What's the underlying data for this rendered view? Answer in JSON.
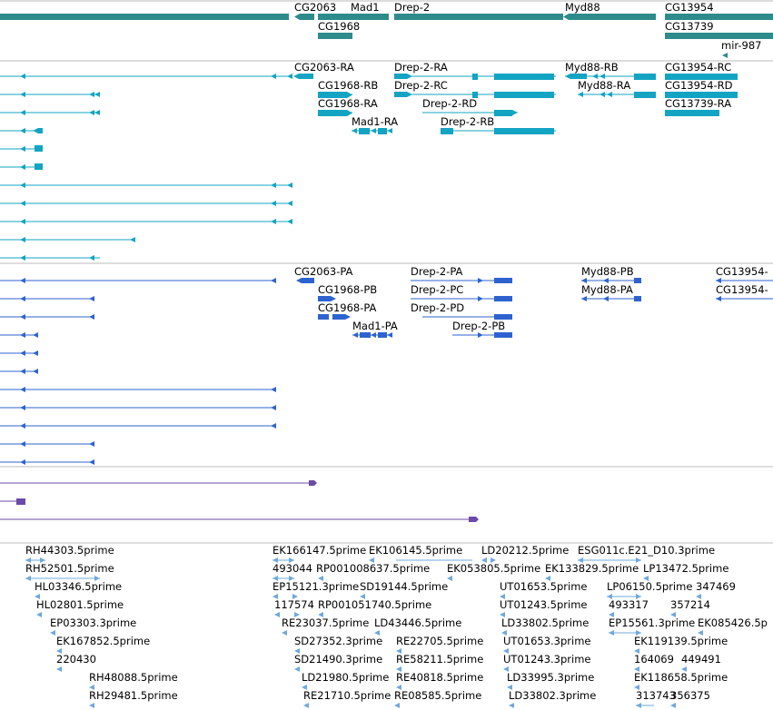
{
  "colors": {
    "gene": "#2e8b8b",
    "transcript": "#12a4c2",
    "protein": "#2e63cf",
    "other": "#6b4aa8",
    "est": "#6fa8dc",
    "divider": "#bbbbbb",
    "text": "#000000"
  },
  "genes": {
    "labels": [
      "CG2063",
      "Mad1",
      "Drep-2",
      "Myd88",
      "CG13954",
      "CG1968",
      "CG13739",
      "mir-987"
    ]
  },
  "transcripts": {
    "labels": [
      "CG2063-RA",
      "Drep-2-RA",
      "Myd88-RB",
      "CG13954-RC",
      "CG1968-RB",
      "Drep-2-RC",
      "Myd88-RA",
      "CG13954-RD",
      "CG1968-RA",
      "Drep-2-RD",
      "CG13739-RA",
      "Mad1-RA",
      "Drep-2-RB"
    ]
  },
  "proteins": {
    "labels": [
      "CG2063-PA",
      "Drep-2-PA",
      "Myd88-PB",
      "CG13954-",
      "CG1968-PB",
      "Drep-2-PC",
      "Myd88-PA",
      "CG13954-",
      "CG1968-PA",
      "Drep-2-PD",
      "Mad1-PA",
      "Drep-2-PB"
    ]
  },
  "ests": {
    "labels": [
      "RH44303.5prime",
      "RH52501.5prime",
      "HL03346.5prime",
      "HL02801.5prime",
      "EP03303.3prime",
      "EK167852.5prime",
      "220430",
      "RH48088.5prime",
      "RH29481.5prime",
      "EK166147.5prime",
      "EK106145.5prime",
      "LD20212.5prime",
      "ESG011c.E21_D10.3prime",
      "493044",
      "RP001008637.5prime",
      "EK053805.5prime",
      "EK133829.5prime",
      "LP13472.5prime",
      "EP15121.3prime",
      "SD19144.5prime",
      "UT01653.5prime",
      "LP06150.5prime",
      "347469",
      "117574",
      "RP001051740.5prime",
      "UT01243.5prime",
      "493317",
      "357214",
      "RE23037.5prime",
      "LD43446.5prime",
      "LD33802.5prime",
      "EP15561.3prime",
      "EK085426.5p",
      "SD27352.3prime",
      "RE22705.5prime",
      "UT01653.3prime",
      "EK119139.5prime",
      "SD21490.3prime",
      "RE58211.5prime",
      "UT01243.3prime",
      "164069",
      "449491",
      "LD21980.5prime",
      "RE40818.5prime",
      "LD33995.3prime",
      "EK118658.5prime",
      "RE21710.5prime",
      "RE08585.5prime",
      "LD33802.3prime",
      "313743",
      "356375"
    ]
  }
}
